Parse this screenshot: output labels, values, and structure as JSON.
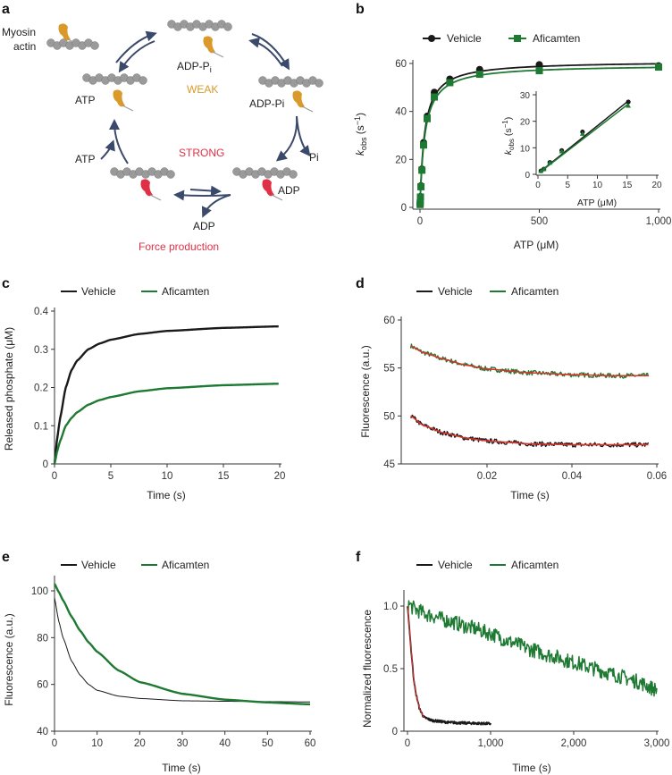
{
  "panels": {
    "a": "a",
    "b": "b",
    "c": "c",
    "d": "d",
    "e": "e",
    "f": "f"
  },
  "colors": {
    "vehicle": "#1a1a1a",
    "aficamten": "#1e7a32",
    "fit": "#e0302a",
    "weak": "#d99a2b",
    "strong": "#e03046",
    "arrow": "#3b4a6b",
    "actin": "#9a9a9a"
  },
  "diagram": {
    "myosin_actin": [
      "Myosin",
      "actin"
    ],
    "adp_pi_top": "ADP-P",
    "adp_pi_top_sub": "i",
    "weak": "WEAK",
    "atp_state": "ATP",
    "adp_pi_right": "ADP-Pi",
    "pi": "Pi",
    "atp_in": "ATP",
    "strong": "STRONG",
    "adp_state": "ADP",
    "adp_release": "ADP",
    "force": "Force production"
  },
  "chart_data": [
    {
      "id": "b",
      "type": "scatter",
      "legend": [
        "Vehicle",
        "Aficamten"
      ],
      "legend_placement": "top",
      "xlabel": "ATP (μM)",
      "ylabel_main": "k",
      "ylabel_sub": "obs",
      "ylabel_unit": " (s",
      "ylabel_sup": "−1",
      "ylabel_close": ")",
      "xlim": [
        0,
        1000
      ],
      "ylim": [
        0,
        60
      ],
      "xticks": [
        0,
        500,
        1000
      ],
      "xticklabels": [
        "0",
        "500",
        "1,000"
      ],
      "yticks": [
        0,
        20,
        40,
        60
      ],
      "yticklabels": [
        "0",
        "20",
        "40",
        "60"
      ],
      "series": [
        {
          "name": "Vehicle",
          "x": [
            0.5,
            1,
            2,
            4,
            8,
            15,
            30,
            60,
            125,
            250,
            500,
            1000
          ],
          "y": [
            1.3,
            2,
            4.5,
            9,
            16,
            27,
            38,
            48,
            53.5,
            57.5,
            59.5,
            59
          ],
          "fit": {
            "kmax": 61,
            "K": 19
          }
        },
        {
          "name": "Aficamten",
          "x": [
            0.5,
            1,
            2,
            4,
            8,
            15,
            30,
            60,
            125,
            250,
            500,
            1000
          ],
          "y": [
            1.2,
            1.9,
            4.3,
            8.6,
            15.5,
            26,
            37,
            46,
            52,
            55.5,
            57,
            58.5
          ],
          "fit": {
            "kmax": 59.5,
            "K": 20
          }
        }
      ],
      "inset": {
        "type": "scatter",
        "xlabel": "ATP (μM)",
        "xlim": [
          0,
          20
        ],
        "ylim": [
          0,
          30
        ],
        "xticks": [
          0,
          5,
          10,
          15,
          20
        ],
        "xticklabels": [
          "0",
          "5",
          "10",
          "15",
          "20"
        ],
        "yticks": [
          0,
          10,
          20,
          30
        ],
        "yticklabels": [
          "0",
          "10",
          "20",
          "30"
        ],
        "series": [
          {
            "name": "Vehicle",
            "x": [
              0.5,
              1,
              2,
              4,
              7.5,
              15.2
            ],
            "y": [
              1.3,
              2,
              4.5,
              9,
              16,
              27.3
            ],
            "slope": 1.8,
            "intercept": 0.3
          },
          {
            "name": "Aficamten",
            "x": [
              0.5,
              1,
              2,
              4,
              7.5,
              15.2
            ],
            "y": [
              1.2,
              1.9,
              4.3,
              8.6,
              15.2,
              25.8
            ],
            "slope": 1.73,
            "intercept": 0.2
          }
        ]
      }
    },
    {
      "id": "c",
      "type": "line",
      "legend": [
        "Vehicle",
        "Aficamten"
      ],
      "legend_placement": "top",
      "xlabel": "Time (s)",
      "ylabel": "Released phosphate (μM)",
      "xlim": [
        0,
        20
      ],
      "ylim": [
        0,
        0.4
      ],
      "xticks": [
        0,
        5,
        10,
        15,
        20
      ],
      "xticklabels": [
        "0",
        "5",
        "10",
        "15",
        "20"
      ],
      "yticks": [
        0,
        0.1,
        0.2,
        0.3,
        0.4
      ],
      "yticklabels": [
        "0",
        "0.1",
        "0.2",
        "0.3",
        "0.4"
      ],
      "series": [
        {
          "name": "Vehicle",
          "x": [
            0,
            0.25,
            0.5,
            1,
            1.5,
            2,
            3,
            4,
            5,
            7.5,
            10,
            15,
            20
          ],
          "y": [
            0,
            0.07,
            0.12,
            0.2,
            0.245,
            0.27,
            0.3,
            0.315,
            0.325,
            0.34,
            0.348,
            0.356,
            0.36
          ]
        },
        {
          "name": "Aficamten",
          "x": [
            0,
            0.25,
            0.5,
            1,
            1.5,
            2,
            3,
            4,
            5,
            7.5,
            10,
            15,
            20
          ],
          "y": [
            0,
            0.035,
            0.06,
            0.1,
            0.12,
            0.135,
            0.155,
            0.167,
            0.175,
            0.19,
            0.198,
            0.206,
            0.21
          ]
        }
      ]
    },
    {
      "id": "d",
      "type": "line",
      "legend": [
        "Vehicle",
        "Aficamten"
      ],
      "legend_placement": "top",
      "xlabel": "Time (s)",
      "ylabel": "Fluorescence (a.u.)",
      "xlim": [
        0,
        0.06
      ],
      "ylim": [
        45,
        60
      ],
      "xticks": [
        0.02,
        0.04,
        0.06
      ],
      "xticklabels": [
        "0.02",
        "0.04",
        "0.06"
      ],
      "yticks": [
        45,
        50,
        55,
        60
      ],
      "yticklabels": [
        "45",
        "50",
        "55",
        "60"
      ],
      "series": [
        {
          "name": "Vehicle",
          "x": [
            0.002,
            0.005,
            0.01,
            0.015,
            0.02,
            0.03,
            0.04,
            0.05,
            0.058
          ],
          "y": [
            50,
            49,
            48.2,
            47.7,
            47.4,
            47.1,
            47,
            47,
            47
          ]
        },
        {
          "name": "Aficamten",
          "x": [
            0.002,
            0.005,
            0.01,
            0.015,
            0.02,
            0.03,
            0.04,
            0.05,
            0.058
          ],
          "y": [
            57.3,
            56.6,
            55.9,
            55.3,
            54.9,
            54.5,
            54.3,
            54.2,
            54.2
          ]
        }
      ],
      "fit_color": "red"
    },
    {
      "id": "e",
      "type": "line",
      "legend": [
        "Vehicle",
        "Aficamten"
      ],
      "legend_placement": "top",
      "xlabel": "Time (s)",
      "ylabel": "Fluorescence (a.u.)",
      "xlim": [
        0,
        60
      ],
      "ylim": [
        40,
        105
      ],
      "xticks": [
        0,
        10,
        20,
        30,
        40,
        50,
        60
      ],
      "xticklabels": [
        "0",
        "10",
        "20",
        "30",
        "40",
        "50",
        "60"
      ],
      "yticks": [
        40,
        60,
        80,
        100
      ],
      "yticklabels": [
        "40",
        "60",
        "80",
        "100"
      ],
      "series": [
        {
          "name": "Vehicle",
          "x": [
            0,
            1,
            2,
            4,
            6,
            8,
            10,
            15,
            20,
            30,
            40,
            60
          ],
          "y": [
            97,
            87,
            80,
            70,
            64,
            60,
            57.5,
            55,
            54,
            53,
            52.8,
            52.5
          ]
        },
        {
          "name": "Aficamten",
          "x": [
            0,
            1,
            2,
            4,
            6,
            8,
            10,
            15,
            20,
            30,
            40,
            50,
            60
          ],
          "y": [
            103,
            99.5,
            96,
            89,
            83,
            78,
            74,
            66,
            61,
            56,
            53.5,
            52.3,
            51.5
          ]
        }
      ]
    },
    {
      "id": "f",
      "type": "line",
      "legend": [
        "Vehicle",
        "Aficamten"
      ],
      "legend_placement": "top",
      "xlabel": "Time (s)",
      "ylabel": "Normalized fluorescence",
      "xlim": [
        0,
        3000
      ],
      "ylim": [
        0,
        1.1
      ],
      "xticks": [
        0,
        1000,
        2000,
        3000
      ],
      "xticklabels": [
        "0",
        "1,000",
        "2,000",
        "3,000"
      ],
      "yticks": [
        0,
        0.5,
        1.0
      ],
      "yticklabels": [
        "0",
        "0.5",
        "1.0"
      ],
      "series": [
        {
          "name": "Vehicle",
          "x": [
            0,
            25,
            50,
            75,
            100,
            150,
            200,
            300,
            500,
            700,
            1000
          ],
          "y": [
            1,
            0.8,
            0.6,
            0.42,
            0.3,
            0.17,
            0.11,
            0.085,
            0.07,
            0.065,
            0.06
          ]
        },
        {
          "name": "Aficamten",
          "x": [
            0,
            100,
            250,
            500,
            750,
            1000,
            1250,
            1500,
            1750,
            2000,
            2250,
            2500,
            2750,
            3000
          ],
          "y": [
            1.02,
            0.97,
            0.93,
            0.88,
            0.83,
            0.78,
            0.71,
            0.65,
            0.6,
            0.55,
            0.5,
            0.45,
            0.4,
            0.33
          ]
        }
      ]
    }
  ]
}
